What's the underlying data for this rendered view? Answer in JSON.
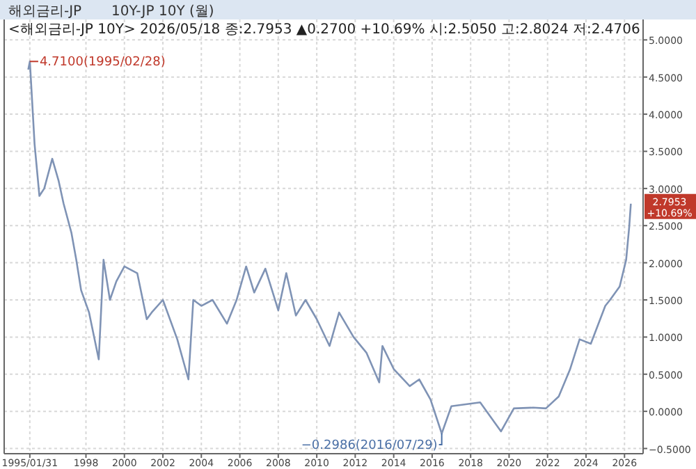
{
  "chart_data": {
    "type": "line",
    "title": "해외금리-JP",
    "subtitle": "10Y-JP 10Y (월)",
    "annotations": [
      "<해외금리-JP 10Y> 2026/05/18 종:2.7953 ▲0.2700 +10.69% 시:2.5050 고:2.8024 저:2.4706",
      {
        "text": "4.7100(1995/02/28)",
        "x": "1995-02",
        "y": 4.71
      },
      {
        "text": "−0.2986(2016/07/29)",
        "x": "2016-07",
        "y": -0.2986
      },
      {
        "text": "2.7953",
        "x": "2026-05",
        "y": 2.7953
      },
      "+10.69%"
    ],
    "x": [
      "1995-01",
      "1995-02",
      "1995-05",
      "1995-08",
      "1995-11",
      "1996-04",
      "1996-08",
      "1996-11",
      "1997-04",
      "1997-07",
      "1997-10",
      "1998-03",
      "1998-09",
      "1998-12",
      "1999-04",
      "1999-08",
      "2000-01",
      "2000-09",
      "2001-03",
      "2001-06",
      "2002-01",
      "2002-10",
      "2003-05",
      "2003-08",
      "2004-01",
      "2004-08",
      "2005-05",
      "2005-11",
      "2006-05",
      "2006-10",
      "2007-05",
      "2008-01",
      "2008-06",
      "2008-12",
      "2009-06",
      "2010-01",
      "2010-09",
      "2011-03",
      "2011-12",
      "2012-08",
      "2013-04",
      "2013-06",
      "2014-01",
      "2014-11",
      "2015-05",
      "2015-12",
      "2016-07",
      "2017-01",
      "2018-07",
      "2019-08",
      "2020-04",
      "2021-04",
      "2021-12",
      "2022-08",
      "2023-03",
      "2023-09",
      "2024-04",
      "2025-01",
      "2025-04",
      "2025-10",
      "2026-02",
      "2026-04",
      "2026-05"
    ],
    "series": [
      {
        "color": "#7f93b5",
        "values": [
          4.6,
          4.71,
          3.6,
          2.9,
          3.0,
          3.4,
          3.1,
          2.8,
          2.4,
          2.04,
          1.63,
          1.33,
          0.7,
          2.04,
          1.5,
          1.75,
          1.95,
          1.86,
          1.24,
          1.33,
          1.5,
          0.97,
          0.43,
          1.5,
          1.42,
          1.5,
          1.18,
          1.5,
          1.95,
          1.6,
          1.92,
          1.36,
          1.86,
          1.29,
          1.5,
          1.24,
          0.88,
          1.33,
          1.0,
          0.79,
          0.39,
          0.88,
          0.57,
          0.34,
          0.43,
          0.16,
          -0.2986,
          0.07,
          0.12,
          -0.27,
          0.04,
          0.05,
          0.04,
          0.2,
          0.56,
          0.97,
          0.91,
          1.42,
          1.5,
          1.68,
          2.04,
          2.49,
          2.7953
        ]
      }
    ],
    "xlim": [
      "1993-10-01",
      "2026-12-20"
    ],
    "xticks": [
      {
        "value": "1995-01-31",
        "label": "1995/01/31"
      },
      {
        "value": "1998-01-01",
        "label": "1998"
      },
      {
        "value": "2000-01-01",
        "label": "2000"
      },
      {
        "value": "2002-01-01",
        "label": "2002"
      },
      {
        "value": "2004-01-01",
        "label": "2004"
      },
      {
        "value": "2006-01-01",
        "label": "2006"
      },
      {
        "value": "2008-01-01",
        "label": "2008"
      },
      {
        "value": "2010-01-01",
        "label": "2010"
      },
      {
        "value": "2012-01-01",
        "label": "2012"
      },
      {
        "value": "2014-01-01",
        "label": "2014"
      },
      {
        "value": "2016-01-01",
        "label": "2016"
      },
      {
        "value": "2018-01-01",
        "label": "2018"
      },
      {
        "value": "2020-01-01",
        "label": "2020"
      },
      {
        "value": "2022-01-01",
        "label": "2022"
      },
      {
        "value": "2024-01-01",
        "label": "2024"
      },
      {
        "value": "2026-01-01",
        "label": "2026"
      }
    ],
    "ylim": [
      -0.57,
      5.05
    ],
    "yticks": [
      {
        "value": 5,
        "label": "5.0000"
      },
      {
        "value": 4.5,
        "label": "4.5000"
      },
      {
        "value": 4,
        "label": "4.0000"
      },
      {
        "value": 3.5,
        "label": "3.5000"
      },
      {
        "value": 3,
        "label": "3.0000"
      },
      {
        "value": 2.5,
        "label": "2.5000"
      },
      {
        "value": 2,
        "label": "2.0000"
      },
      {
        "value": 1.5,
        "label": "1.5000"
      },
      {
        "value": 1,
        "label": "1.0000"
      },
      {
        "value": 0.5,
        "label": "0.5000"
      },
      {
        "value": 0,
        "label": "0.0000"
      },
      {
        "value": -0.5,
        "label": "−0.5000"
      }
    ],
    "grid": true,
    "line_style": "solid"
  }
}
